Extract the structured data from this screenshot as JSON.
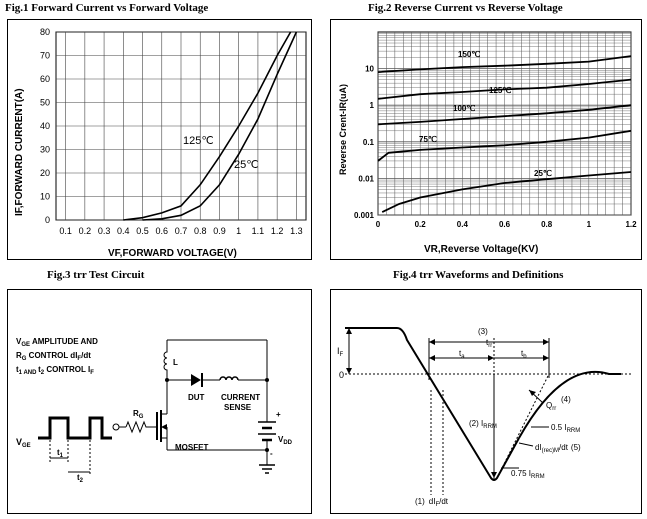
{
  "figures": {
    "fig1": {
      "title": "Fig.1  Forward Current vs Forward Voltage"
    },
    "fig2": {
      "title": "Fig.2  Reverse Current vs Reverse Voltage"
    },
    "fig3": {
      "title": "Fig.3  trr Test Circuit"
    },
    "fig4": {
      "title": "Fig.4 trr Waveforms and Definitions"
    }
  },
  "chart_data": [
    {
      "id": "fig1",
      "type": "line",
      "title": "Fig.1  Forward Current vs Forward Voltage",
      "xlabel": "VF,FORWARD VOLTAGE(V)",
      "ylabel": "IF,FORWARD CURRENT(A)",
      "xlim": [
        0.05,
        1.35
      ],
      "ylim": [
        0,
        80
      ],
      "x_ticks": [
        "0.1",
        "0.2",
        "0.3",
        "0.4",
        "0.5",
        "0.6",
        "0.7",
        "0.8",
        "0.9",
        "1",
        "1.1",
        "1.2",
        "1.3"
      ],
      "y_ticks": [
        "0",
        "10",
        "20",
        "30",
        "40",
        "50",
        "60",
        "70",
        "80"
      ],
      "grid": true,
      "series": [
        {
          "name": "125°C",
          "label": "125℃",
          "points": [
            [
              0.4,
              0
            ],
            [
              0.5,
              1
            ],
            [
              0.6,
              3
            ],
            [
              0.7,
              6
            ],
            [
              0.8,
              15
            ],
            [
              0.9,
              27
            ],
            [
              1.0,
              40
            ],
            [
              1.1,
              54
            ],
            [
              1.2,
              70
            ],
            [
              1.27,
              80
            ]
          ]
        },
        {
          "name": "25°C",
          "label": "25℃",
          "points": [
            [
              0.5,
              0
            ],
            [
              0.6,
              0.5
            ],
            [
              0.7,
              2
            ],
            [
              0.8,
              6
            ],
            [
              0.9,
              15
            ],
            [
              1.0,
              28
            ],
            [
              1.1,
              43
            ],
            [
              1.2,
              62
            ],
            [
              1.3,
              80
            ]
          ]
        }
      ]
    },
    {
      "id": "fig2",
      "type": "line",
      "title": "Fig.2  Reverse Current vs Reverse Voltage",
      "xlabel": "VR,Reverse Voltage(KV)",
      "ylabel": "Reverse Crent-IR(uA)",
      "xlim": [
        0,
        1.2
      ],
      "ylim": [
        0.001,
        100
      ],
      "yscale": "log",
      "x_ticks": [
        "0",
        "0.2",
        "0.4",
        "0.6",
        "0.8",
        "1",
        "1.2"
      ],
      "y_ticks": [
        "0.001",
        "0.01",
        "0.1",
        "1",
        "10"
      ],
      "grid": true,
      "series": [
        {
          "name": "150°C",
          "label": "150℃",
          "points": [
            [
              0,
              8
            ],
            [
              0.2,
              9.5
            ],
            [
              0.4,
              11
            ],
            [
              0.6,
              12
            ],
            [
              0.8,
              13.5
            ],
            [
              1.0,
              15.5
            ],
            [
              1.2,
              22
            ]
          ]
        },
        {
          "name": "125°C",
          "label": "125℃",
          "points": [
            [
              0,
              1.5
            ],
            [
              0.2,
              2
            ],
            [
              0.4,
              2.3
            ],
            [
              0.6,
              2.7
            ],
            [
              0.8,
              3
            ],
            [
              1.0,
              3.8
            ],
            [
              1.2,
              5
            ]
          ]
        },
        {
          "name": "100°C",
          "label": "100℃",
          "points": [
            [
              0,
              0.3
            ],
            [
              0.2,
              0.35
            ],
            [
              0.4,
              0.42
            ],
            [
              0.6,
              0.5
            ],
            [
              0.8,
              0.6
            ],
            [
              1.0,
              0.75
            ],
            [
              1.2,
              1
            ]
          ]
        },
        {
          "name": "75°C",
          "label": "75℃",
          "points": [
            [
              0,
              0.03
            ],
            [
              0.05,
              0.05
            ],
            [
              0.2,
              0.06
            ],
            [
              0.4,
              0.07
            ],
            [
              0.6,
              0.08
            ],
            [
              0.8,
              0.1
            ],
            [
              1.0,
              0.13
            ],
            [
              1.2,
              0.2
            ]
          ]
        },
        {
          "name": "25°C",
          "label": "25℃",
          "points": [
            [
              0.02,
              0.0012
            ],
            [
              0.1,
              0.002
            ],
            [
              0.2,
              0.003
            ],
            [
              0.4,
              0.005
            ],
            [
              0.6,
              0.0075
            ],
            [
              0.8,
              0.0095
            ],
            [
              1.0,
              0.012
            ],
            [
              1.2,
              0.015
            ]
          ]
        }
      ]
    }
  ],
  "circuit": {
    "text_lines": [
      "V",
      "GE",
      " AMPLITUDE AND",
      "R",
      "G",
      " CONTROL dI",
      "F",
      "/dt",
      "t",
      "1 AND ",
      "t",
      "2",
      " CONTROL I",
      "F"
    ],
    "vge_main": "V",
    "vge_sub": "GE",
    "t1_main": "t",
    "t1_sub": "1",
    "t2_main": "t",
    "t2_sub": "2",
    "rg_main": "R",
    "rg_sub": "G",
    "inductor_label": "L",
    "dut_label": "DUT",
    "current_label": "CURRENT",
    "sense_label": "SENSE",
    "mosfet_label": "MOSFET",
    "vdd_main": "V",
    "vdd_sub": "DD",
    "plus": "+",
    "minus": "-"
  },
  "waveform": {
    "if_main": "I",
    "if_sub": "F",
    "zero_label": "0",
    "label3": "(3)",
    "trr_main": "t",
    "trr_sub": "rr",
    "ta_main": "t",
    "ta_sub": "a",
    "tb_main": "t",
    "tb_sub": "b",
    "label2": "(2) I",
    "irrm_sub": "RRM",
    "qrr_main": "Q",
    "qrr_sub": "rr",
    "label4": "(4)",
    "half_irrm_main": "0.5 I",
    "half_irrm_sub": "RRM",
    "di_main": "dI",
    "di_sub1": "(rec)M",
    "di_tail": "/dt",
    "label5": "(5)",
    "q75_main": "0.75 I",
    "q75_sub": "RRM",
    "label1": "(1)",
    "dif_main": "dI",
    "dif_sub": "F",
    "dif_tail": "/dt"
  }
}
